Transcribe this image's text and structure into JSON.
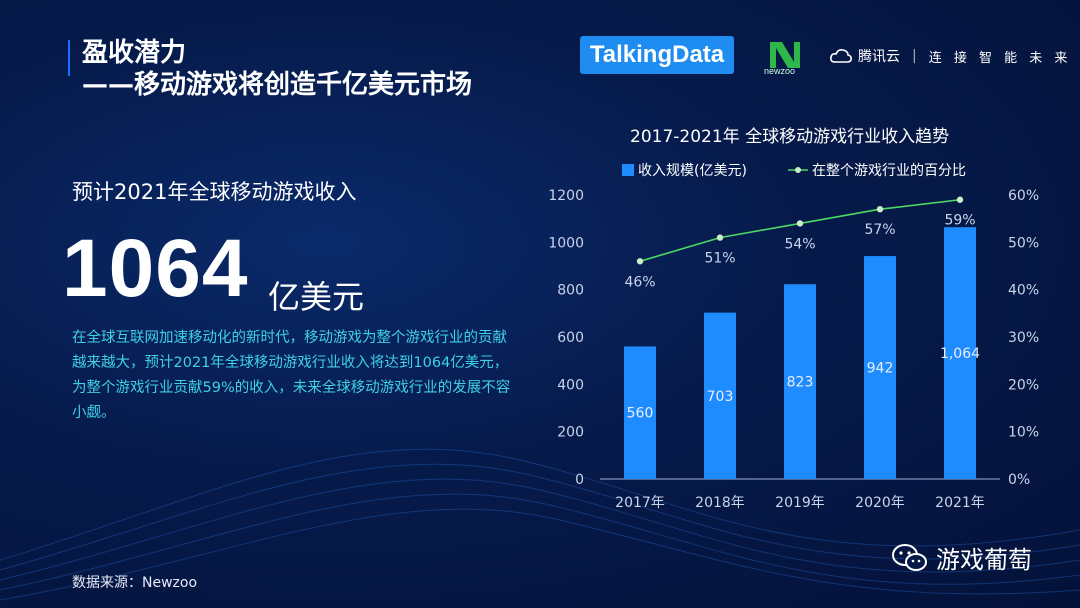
{
  "header": {
    "title_line1": "盈收潜力",
    "title_line2": "——移动游戏将创造千亿美元市场"
  },
  "logos": {
    "talkingdata": "TalkingData",
    "newzoo": "newzoo",
    "tencent_cloud": "腾讯云",
    "tencent_slogan": "连 接 智 能 未 来"
  },
  "left": {
    "subhead": "预计2021年全球移动游戏收入",
    "big_number": "1064",
    "big_unit": "亿美元",
    "description": "在全球互联网加速移动化的新时代，移动游戏为整个游戏行业的贡献越来越大，预计2021年全球移动游戏行业收入将达到1064亿美元，为整个游戏行业贡献59%的收入，未来全球移动游戏行业的发展不容小觑。"
  },
  "footer": {
    "source": "数据来源：Newzoo",
    "wechat_name": "游戏葡萄"
  },
  "colors": {
    "bar": "#1e8cff",
    "line": "#4cd964",
    "accent": "#1e6fff",
    "desc_text": "#3fd0e8"
  },
  "chart_data": {
    "type": "bar",
    "title": "2017-2021年  全球移动游戏行业收入趋势",
    "categories": [
      "2017年",
      "2018年",
      "2019年",
      "2020年",
      "2021年"
    ],
    "series": [
      {
        "name": "收入规模(亿美元)",
        "type": "bar",
        "axis": "left",
        "values": [
          560,
          703,
          823,
          942,
          1064
        ],
        "labels": [
          "560",
          "703",
          "823",
          "942",
          "1,064"
        ]
      },
      {
        "name": "在整个游戏行业的百分比",
        "type": "line",
        "axis": "right",
        "values": [
          46,
          51,
          54,
          57,
          59
        ],
        "labels": [
          "46%",
          "51%",
          "54%",
          "57%",
          "59%"
        ]
      }
    ],
    "y_left": {
      "ticks": [
        "0",
        "200",
        "400",
        "600",
        "800",
        "1000",
        "1200"
      ],
      "range": [
        0,
        1200
      ]
    },
    "y_right": {
      "ticks": [
        "0%",
        "10%",
        "20%",
        "30%",
        "40%",
        "50%",
        "60%"
      ],
      "range": [
        0,
        60
      ]
    },
    "legend_position": "top",
    "grid": false
  }
}
